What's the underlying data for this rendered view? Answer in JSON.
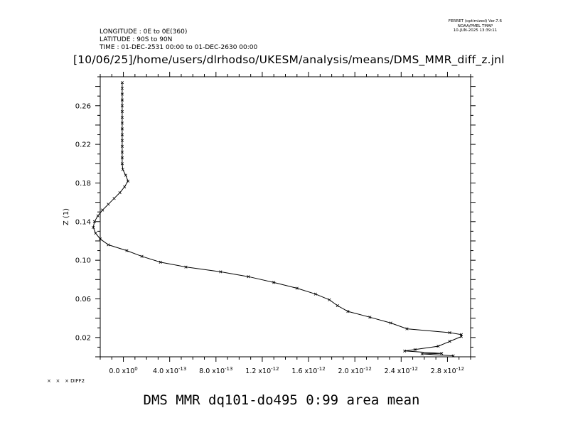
{
  "header": {
    "longitude": "LONGITUDE : 0E to 0E(360)",
    "latitude": "LATITUDE : 90S to 90N",
    "time": "TIME : 01-DEC-2531 00:00 to 01-DEC-2630 00:00",
    "ferret_line1": "FERRET (optimized) Ver.7.6",
    "ferret_line2": "NOAA/PMEL TMAP",
    "ferret_line3": "10-JUN-2025 13:39:11",
    "path": "[10/06/25]/home/users/dlrhodso/UKESM/analysis/means/DMS_MMR_diff_z.jnl"
  },
  "legend_label": "DIFF2",
  "chart_data": {
    "type": "line",
    "title": "DMS MMR dq101-do495 0:99 area mean",
    "xlabel": "",
    "ylabel": "Z (1)",
    "xlim": [
      -2e-13,
      3e-12
    ],
    "ylim": [
      0.0,
      0.29
    ],
    "x_ticks": [
      0,
      4e-13,
      8e-13,
      1.2e-12,
      1.6e-12,
      2e-12,
      2.4e-12,
      2.8e-12
    ],
    "x_tick_mantissas": [
      "0.0",
      "4.0",
      "8.0",
      "1.2",
      "1.6",
      "2.0",
      "2.4",
      "2.8"
    ],
    "x_tick_exponents": [
      "0",
      "-13",
      "-13",
      "-12",
      "-12",
      "-12",
      "-12",
      "-12"
    ],
    "y_ticks": [
      "0.02",
      "0.06",
      "0.10",
      "0.14",
      "0.18",
      "0.22",
      "0.26"
    ],
    "series": [
      {
        "name": "DIFF2",
        "marker": "x",
        "color": "#000000",
        "points": [
          [
            2.85e-12,
            0.001
          ],
          [
            2.58e-12,
            0.003
          ],
          [
            2.75e-12,
            0.0035
          ],
          [
            2.43e-12,
            0.006
          ],
          [
            2.52e-12,
            0.0075
          ],
          [
            2.72e-12,
            0.011
          ],
          [
            2.82e-12,
            0.016
          ],
          [
            2.92e-12,
            0.021
          ],
          [
            2.92e-12,
            0.023
          ],
          [
            2.82e-12,
            0.025
          ],
          [
            2.45e-12,
            0.029
          ],
          [
            2.31e-12,
            0.035
          ],
          [
            2.13e-12,
            0.041
          ],
          [
            1.94e-12,
            0.047
          ],
          [
            1.85e-12,
            0.053
          ],
          [
            1.78e-12,
            0.059
          ],
          [
            1.66e-12,
            0.065
          ],
          [
            1.5e-12,
            0.071
          ],
          [
            1.3e-12,
            0.077
          ],
          [
            1.08e-12,
            0.083
          ],
          [
            8.4e-13,
            0.088
          ],
          [
            5.4e-13,
            0.093
          ],
          [
            3.2e-13,
            0.098
          ],
          [
            1.6e-13,
            0.104
          ],
          [
            3e-14,
            0.11
          ],
          [
            -1.3e-13,
            0.116
          ],
          [
            -2e-13,
            0.122
          ],
          [
            -2.4e-13,
            0.128
          ],
          [
            -2.6e-13,
            0.134
          ],
          [
            -2.5e-13,
            0.14
          ],
          [
            -2.2e-13,
            0.146
          ],
          [
            -1.8e-13,
            0.152
          ],
          [
            -1.3e-13,
            0.158
          ],
          [
            -8e-14,
            0.164
          ],
          [
            -3e-14,
            0.17
          ],
          [
            1e-14,
            0.176
          ],
          [
            4e-14,
            0.182
          ],
          [
            2e-14,
            0.188
          ],
          [
            -5e-15,
            0.194
          ],
          [
            -1e-14,
            0.2
          ],
          [
            -1e-14,
            0.206
          ],
          [
            -1e-14,
            0.212
          ],
          [
            -1e-14,
            0.218
          ],
          [
            -1e-14,
            0.224
          ],
          [
            -1e-14,
            0.23
          ],
          [
            -1e-14,
            0.236
          ],
          [
            -1e-14,
            0.242
          ],
          [
            -1e-14,
            0.248
          ],
          [
            -1e-14,
            0.254
          ],
          [
            -1e-14,
            0.26
          ],
          [
            -1e-14,
            0.266
          ],
          [
            -1e-14,
            0.272
          ],
          [
            -1e-14,
            0.278
          ],
          [
            -1e-14,
            0.284
          ]
        ]
      }
    ]
  }
}
